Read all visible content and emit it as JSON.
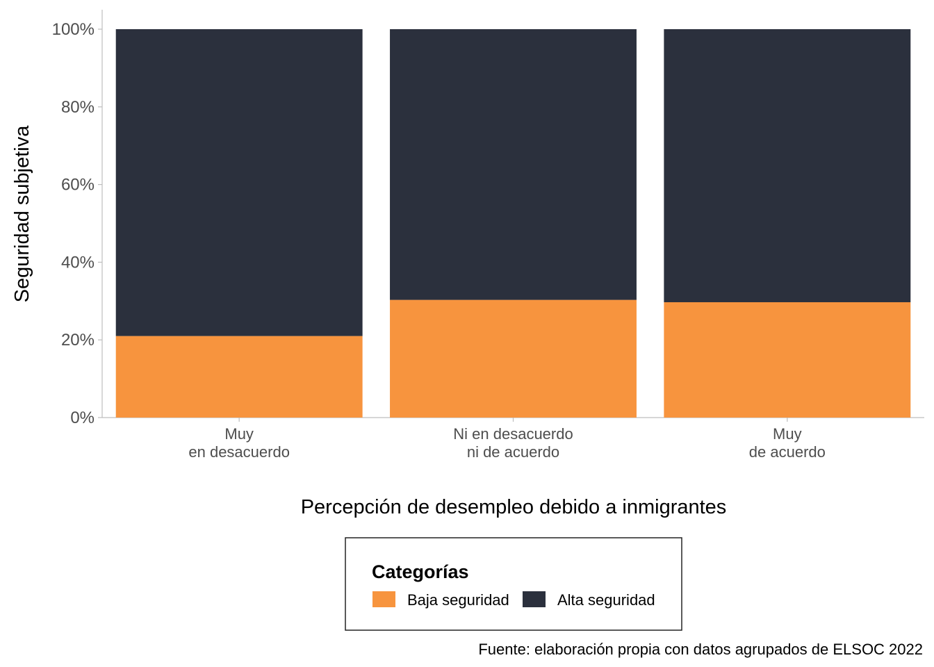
{
  "chart_data": {
    "type": "bar",
    "stacked": true,
    "categories": [
      [
        "Muy",
        "en desacuerdo"
      ],
      [
        "Ni en desacuerdo",
        "ni de acuerdo"
      ],
      [
        "Muy",
        "de acuerdo"
      ]
    ],
    "series": [
      {
        "name": "Baja seguridad",
        "values": [
          21,
          30.3,
          29.7
        ],
        "color": "#F7943E"
      },
      {
        "name": "Alta seguridad",
        "values": [
          79,
          69.7,
          70.3
        ],
        "color": "#2B303D"
      }
    ],
    "ylim": [
      0,
      100
    ],
    "yticks": [
      "0%",
      "20%",
      "40%",
      "60%",
      "80%",
      "100%"
    ],
    "ytick_values": [
      0,
      20,
      40,
      60,
      80,
      100
    ],
    "xlabel": "Percepción de desempleo debido a inmigrantes",
    "ylabel": "Seguridad subjetiva",
    "legend_title": "Categorías",
    "legend_position": "bottom",
    "grid": false,
    "caption": "Fuente: elaboración propia con datos agrupados de ELSOC 2022"
  }
}
